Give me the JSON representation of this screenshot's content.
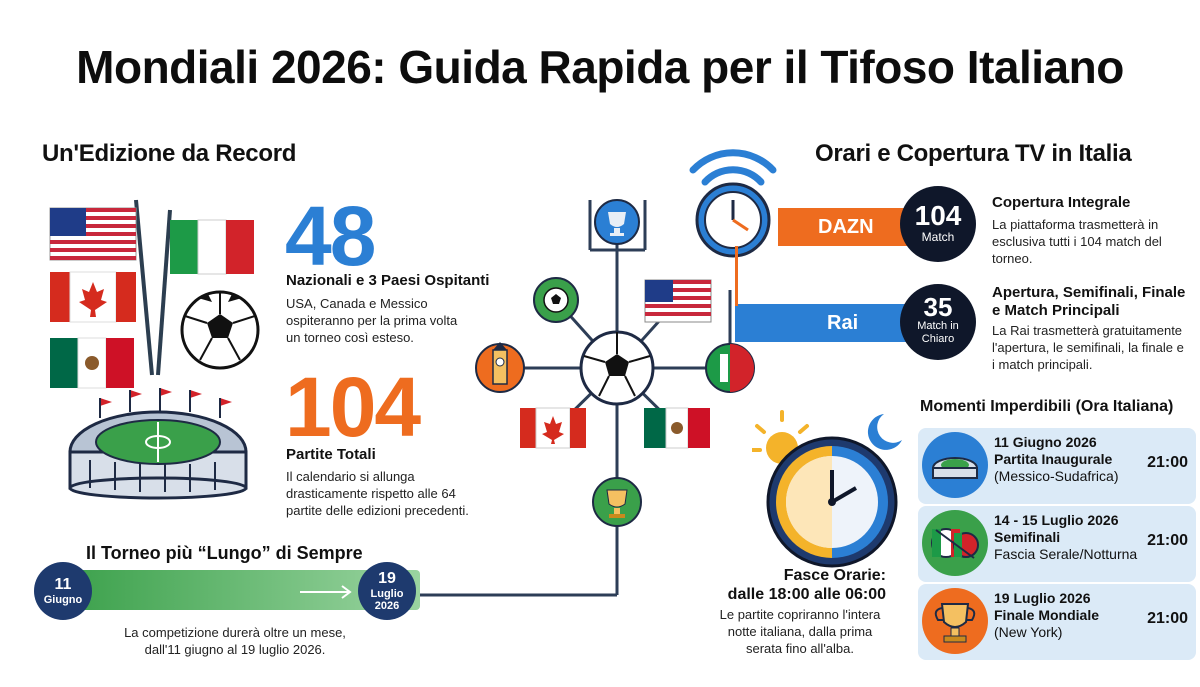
{
  "title": "Mondiali 2026: Guida Rapida per il Tifoso Italiano",
  "left": {
    "heading": "Un'Edizione da Record",
    "stat1": {
      "number": "48",
      "head": "Nazionali e 3 Paesi Ospitanti",
      "desc": [
        "USA, Canada e Messico",
        "ospiteranno per la prima volta",
        "un torneo così esteso."
      ]
    },
    "stat2": {
      "number": "104",
      "head": "Partite Totali",
      "desc": [
        "Il calendario si allunga",
        "drasticamente rispetto alle 64",
        "partite delle edizioni precedenti."
      ]
    },
    "timeline": {
      "heading": "Il Torneo più “Lungo” di Sempre",
      "start_day": "11",
      "start_month": "Giugno",
      "end_day": "19",
      "end_month": "Luglio",
      "end_year": "2026",
      "desc": [
        "La competizione durerà oltre un mese,",
        "dall'11 giugno al 19 luglio 2026."
      ]
    }
  },
  "right": {
    "heading": "Orari e Copertura TV in Italia",
    "dazn": {
      "label": "DAZN",
      "number": "104",
      "unit": "Match",
      "head": "Copertura Integrale",
      "desc": [
        "La piattaforma trasmetterà in",
        "esclusiva tutti i 104 match del",
        "torneo."
      ]
    },
    "rai": {
      "label": "Rai",
      "number": "35",
      "unit1": "Match in",
      "unit2": "Chiaro",
      "head1": "Apertura, Semifinali, Finale",
      "head2": "e Match Principali",
      "desc": [
        "La Rai trasmetterà gratuitamente",
        "l'apertura, le semifinali, la finale e",
        "i match principali."
      ]
    },
    "fasce": {
      "head1": "Fasce Orarie:",
      "head2": "dalle 18:00 alle 06:00",
      "desc": [
        "Le partite copriranno l'intera",
        "notte italiana, dalla prima",
        "serata fino all'alba."
      ]
    },
    "moments": {
      "heading": "Momenti Imperdibili (Ora Italiana)",
      "items": [
        {
          "date": "11 Giugno 2026",
          "name": "Partita Inaugurale",
          "detail": "(Messico-Sudafrica)",
          "time": "21:00",
          "icon": "stadium-icon"
        },
        {
          "date": "14 - 15 Luglio 2026",
          "name": "Semifinali",
          "detail": "Fascia Serale/Notturna",
          "time": "21:00",
          "icon": "italy-portugal-icon"
        },
        {
          "date": "19 Luglio 2026",
          "name": "Finale Mondiale",
          "detail": "(New York)",
          "time": "21:00",
          "icon": "trophy-icon"
        }
      ]
    }
  },
  "colors": {
    "blue": "#2b7fd4",
    "orange": "#ee6c1f",
    "navy": "#1e3a6e",
    "green": "#3aa04a",
    "card": "#dbeaf7"
  }
}
